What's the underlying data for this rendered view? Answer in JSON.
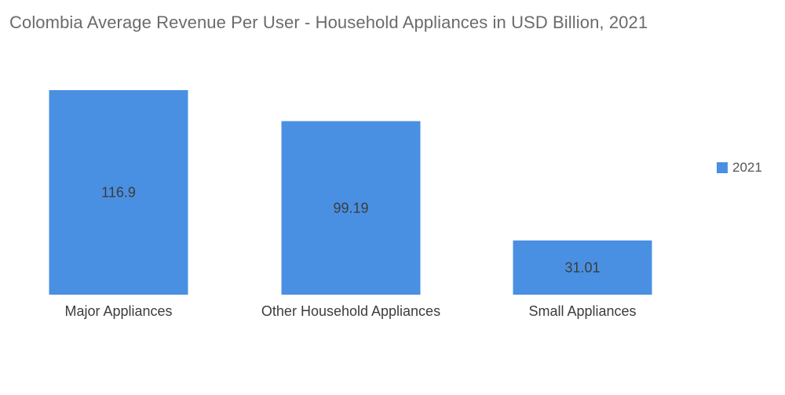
{
  "chart_data": {
    "type": "bar",
    "title": "Colombia Average Revenue Per User - Household Appliances in USD Billion, 2021",
    "categories": [
      "Major Appliances",
      "Other Household Appliances",
      "Small Appliances"
    ],
    "series": [
      {
        "name": "2021",
        "values": [
          116.9,
          99.19,
          31.01
        ],
        "labels": [
          "116.9",
          "99.19",
          "31.01"
        ],
        "color": "#4a90e2"
      }
    ],
    "xlabel": "",
    "ylabel": "",
    "ylim": [
      0,
      125
    ],
    "grid": false,
    "legend": "right"
  }
}
